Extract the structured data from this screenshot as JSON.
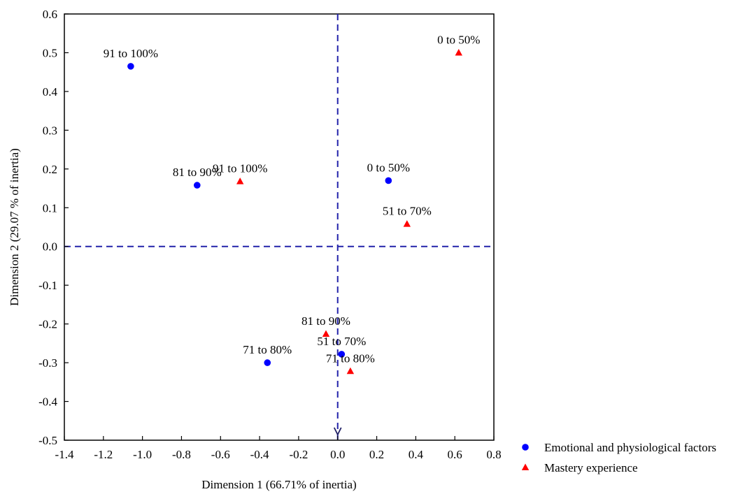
{
  "chart_data": {
    "type": "scatter",
    "title": "",
    "xlabel": "Dimension 1 (66.71% of inertia)",
    "ylabel": "Dimension 2 (29.07 % of inertia)",
    "xlim": [
      -1.4,
      0.8
    ],
    "ylim": [
      -0.5,
      0.6
    ],
    "xticks": [
      "-1.4",
      "-1.2",
      "-1.0",
      "-0.8",
      "-0.6",
      "-0.4",
      "-0.2",
      "0.0",
      "0.2",
      "0.4",
      "0.6",
      "0.8"
    ],
    "yticks": [
      "0.6",
      "0.5",
      "0.4",
      "0.3",
      "0.2",
      "0.1",
      "0.0",
      "-0.1",
      "-0.2",
      "-0.3",
      "-0.4",
      "-0.5"
    ],
    "grid": false,
    "reference_lines": {
      "x": 0,
      "y": 0,
      "style": "dashed",
      "color": "#2222aa"
    },
    "legend_position": "bottom-right",
    "series": [
      {
        "name": "Emotional and physiological factors",
        "marker": "circle",
        "color": "#0000ff",
        "points": [
          {
            "label": "91 to 100%",
            "x": -1.06,
            "y": 0.465
          },
          {
            "label": "81 to 90%",
            "x": -0.72,
            "y": 0.158
          },
          {
            "label": "0 to 50%",
            "x": 0.26,
            "y": 0.17
          },
          {
            "label": "71 to 80%",
            "x": -0.36,
            "y": -0.3
          },
          {
            "label": "51 to 70%",
            "x": 0.02,
            "y": -0.278
          }
        ]
      },
      {
        "name": "Mastery experience",
        "marker": "triangle",
        "color": "#ff0000",
        "points": [
          {
            "label": "0 to 50%",
            "x": 0.62,
            "y": 0.5
          },
          {
            "label": "91 to 100%",
            "x": -0.5,
            "y": 0.168
          },
          {
            "label": "51 to 70%",
            "x": 0.355,
            "y": 0.058
          },
          {
            "label": "81 to 90%",
            "x": -0.06,
            "y": -0.226
          },
          {
            "label": "71 to 80%",
            "x": 0.065,
            "y": -0.322
          }
        ]
      }
    ]
  }
}
